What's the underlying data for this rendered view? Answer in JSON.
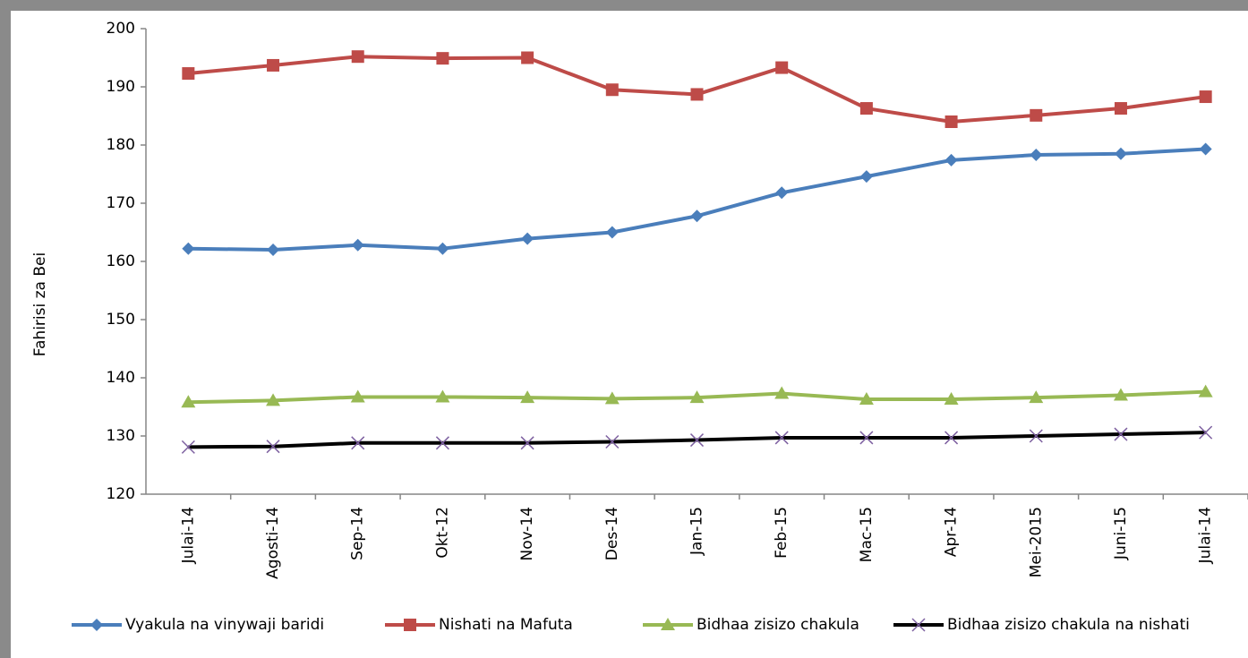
{
  "chart_data": {
    "type": "line",
    "y_label": "Fahirisi za Bei",
    "categories": [
      "Julai-14",
      "Agosti-14",
      "Sep-14",
      "Okt-12",
      "Nov-14",
      "Des-14",
      "Jan-15",
      "Feb-15",
      "Mac-15",
      "Apr-14",
      "Mei-2015",
      "Juni-15",
      "Julai-14"
    ],
    "series": [
      {
        "name": "Vyakula na vinywaji baridi",
        "color": "#4a7ebb",
        "marker": "diamond",
        "values": [
          162.2,
          162.0,
          162.8,
          162.2,
          163.9,
          165.0,
          167.8,
          171.8,
          174.6,
          177.4,
          178.3,
          178.5,
          179.3
        ]
      },
      {
        "name": "Nishati na Mafuta",
        "color": "#be4b48",
        "marker": "square",
        "values": [
          192.3,
          193.7,
          195.2,
          194.9,
          195.0,
          189.5,
          188.7,
          193.3,
          186.3,
          184.0,
          185.1,
          186.3,
          188.3
        ]
      },
      {
        "name": "Bidhaa zisizo chakula",
        "color": "#98b954",
        "marker": "triangle",
        "values": [
          135.8,
          136.1,
          136.7,
          136.7,
          136.6,
          136.4,
          136.6,
          137.3,
          136.3,
          136.3,
          136.6,
          137.0,
          137.6
        ]
      },
      {
        "name": "Bidhaa zisizo chakula  na nishati",
        "color": "#000000",
        "marker": "x",
        "marker_color": "#7d60a0",
        "values": [
          128.1,
          128.2,
          128.8,
          128.8,
          128.8,
          129.0,
          129.3,
          129.7,
          129.7,
          129.7,
          130.0,
          130.3,
          130.6
        ]
      }
    ],
    "ylim": [
      120,
      200
    ],
    "yticks": [
      120,
      130,
      140,
      150,
      160,
      170,
      180,
      190,
      200
    ],
    "grid": false,
    "legend": "bottom"
  }
}
